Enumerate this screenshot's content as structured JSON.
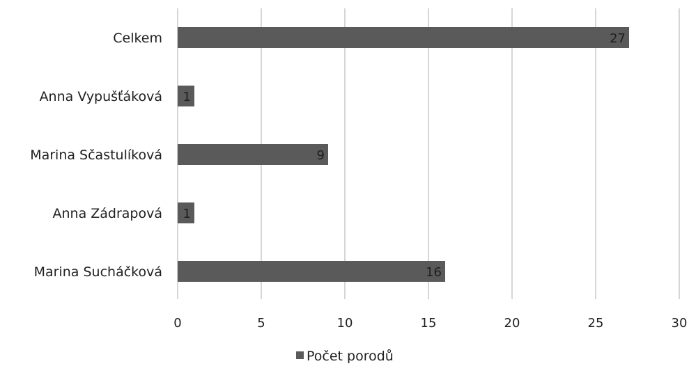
{
  "chart_data": {
    "type": "bar",
    "orientation": "horizontal",
    "categories": [
      "Celkem",
      "Anna Vypušťáková",
      "Marina Sčastulíková",
      "Anna Zádrapová",
      "Marina Sucháčková"
    ],
    "series": [
      {
        "name": "Počet porodů",
        "values": [
          27,
          1,
          9,
          1,
          16
        ],
        "color": "#5a5a5a"
      }
    ],
    "data_labels": [
      "27",
      "1",
      "9",
      "1",
      "16"
    ],
    "xlim": [
      0,
      30
    ],
    "x_ticks": [
      0,
      5,
      10,
      15,
      20,
      25,
      30
    ],
    "x_tick_labels": [
      "0",
      "5",
      "10",
      "15",
      "20",
      "25",
      "30"
    ],
    "grid": true,
    "gridline_color": "#c8c8c8",
    "legend_position": "bottom",
    "legend_label": "Počet porodů"
  }
}
